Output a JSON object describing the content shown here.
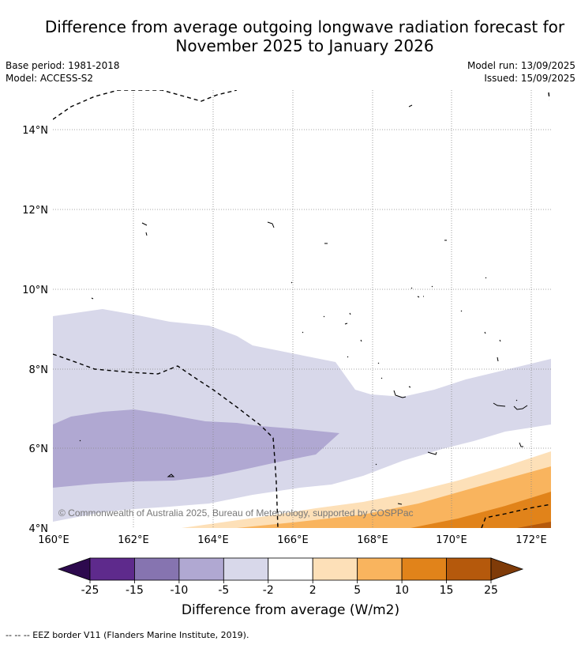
{
  "title_line1": "Difference from average outgoing longwave radiation forecast for",
  "title_line2": "November 2025 to January 2026",
  "base_period": "Base period: 1981-2018",
  "model": "Model: ACCESS-S2",
  "model_run": "Model run: 13/09/2025",
  "issued": "Issued: 15/09/2025",
  "lat_labels": [
    "14°N",
    "12°N",
    "10°N",
    "8°N",
    "6°N",
    "4°N"
  ],
  "lon_labels": [
    "160°E",
    "162°E",
    "164°E",
    "166°E",
    "168°E",
    "170°E",
    "172°E"
  ],
  "copyright": "© Commonwealth of Australia 2025, Bureau of Meteorology, supported by COSPPac",
  "colorbar": {
    "label": "Difference from average (W/m2)",
    "ticks": [
      "-25",
      "-15",
      "-10",
      "-5",
      "-2",
      "2",
      "5",
      "10",
      "15",
      "25"
    ],
    "colors": [
      "#2d0a4e",
      "#5e2a8c",
      "#8674b0",
      "#b0a8d2",
      "#d8d8ea",
      "#ffffff",
      "#fde0b8",
      "#f9b45e",
      "#e1831a",
      "#b5590c",
      "#7f3b08"
    ]
  },
  "footnote_line": "-- -- -- EEZ border V11 (Flanders Marine Institute, 2019).",
  "colors": {
    "eez_border": "#000000",
    "grid": "#888888"
  }
}
